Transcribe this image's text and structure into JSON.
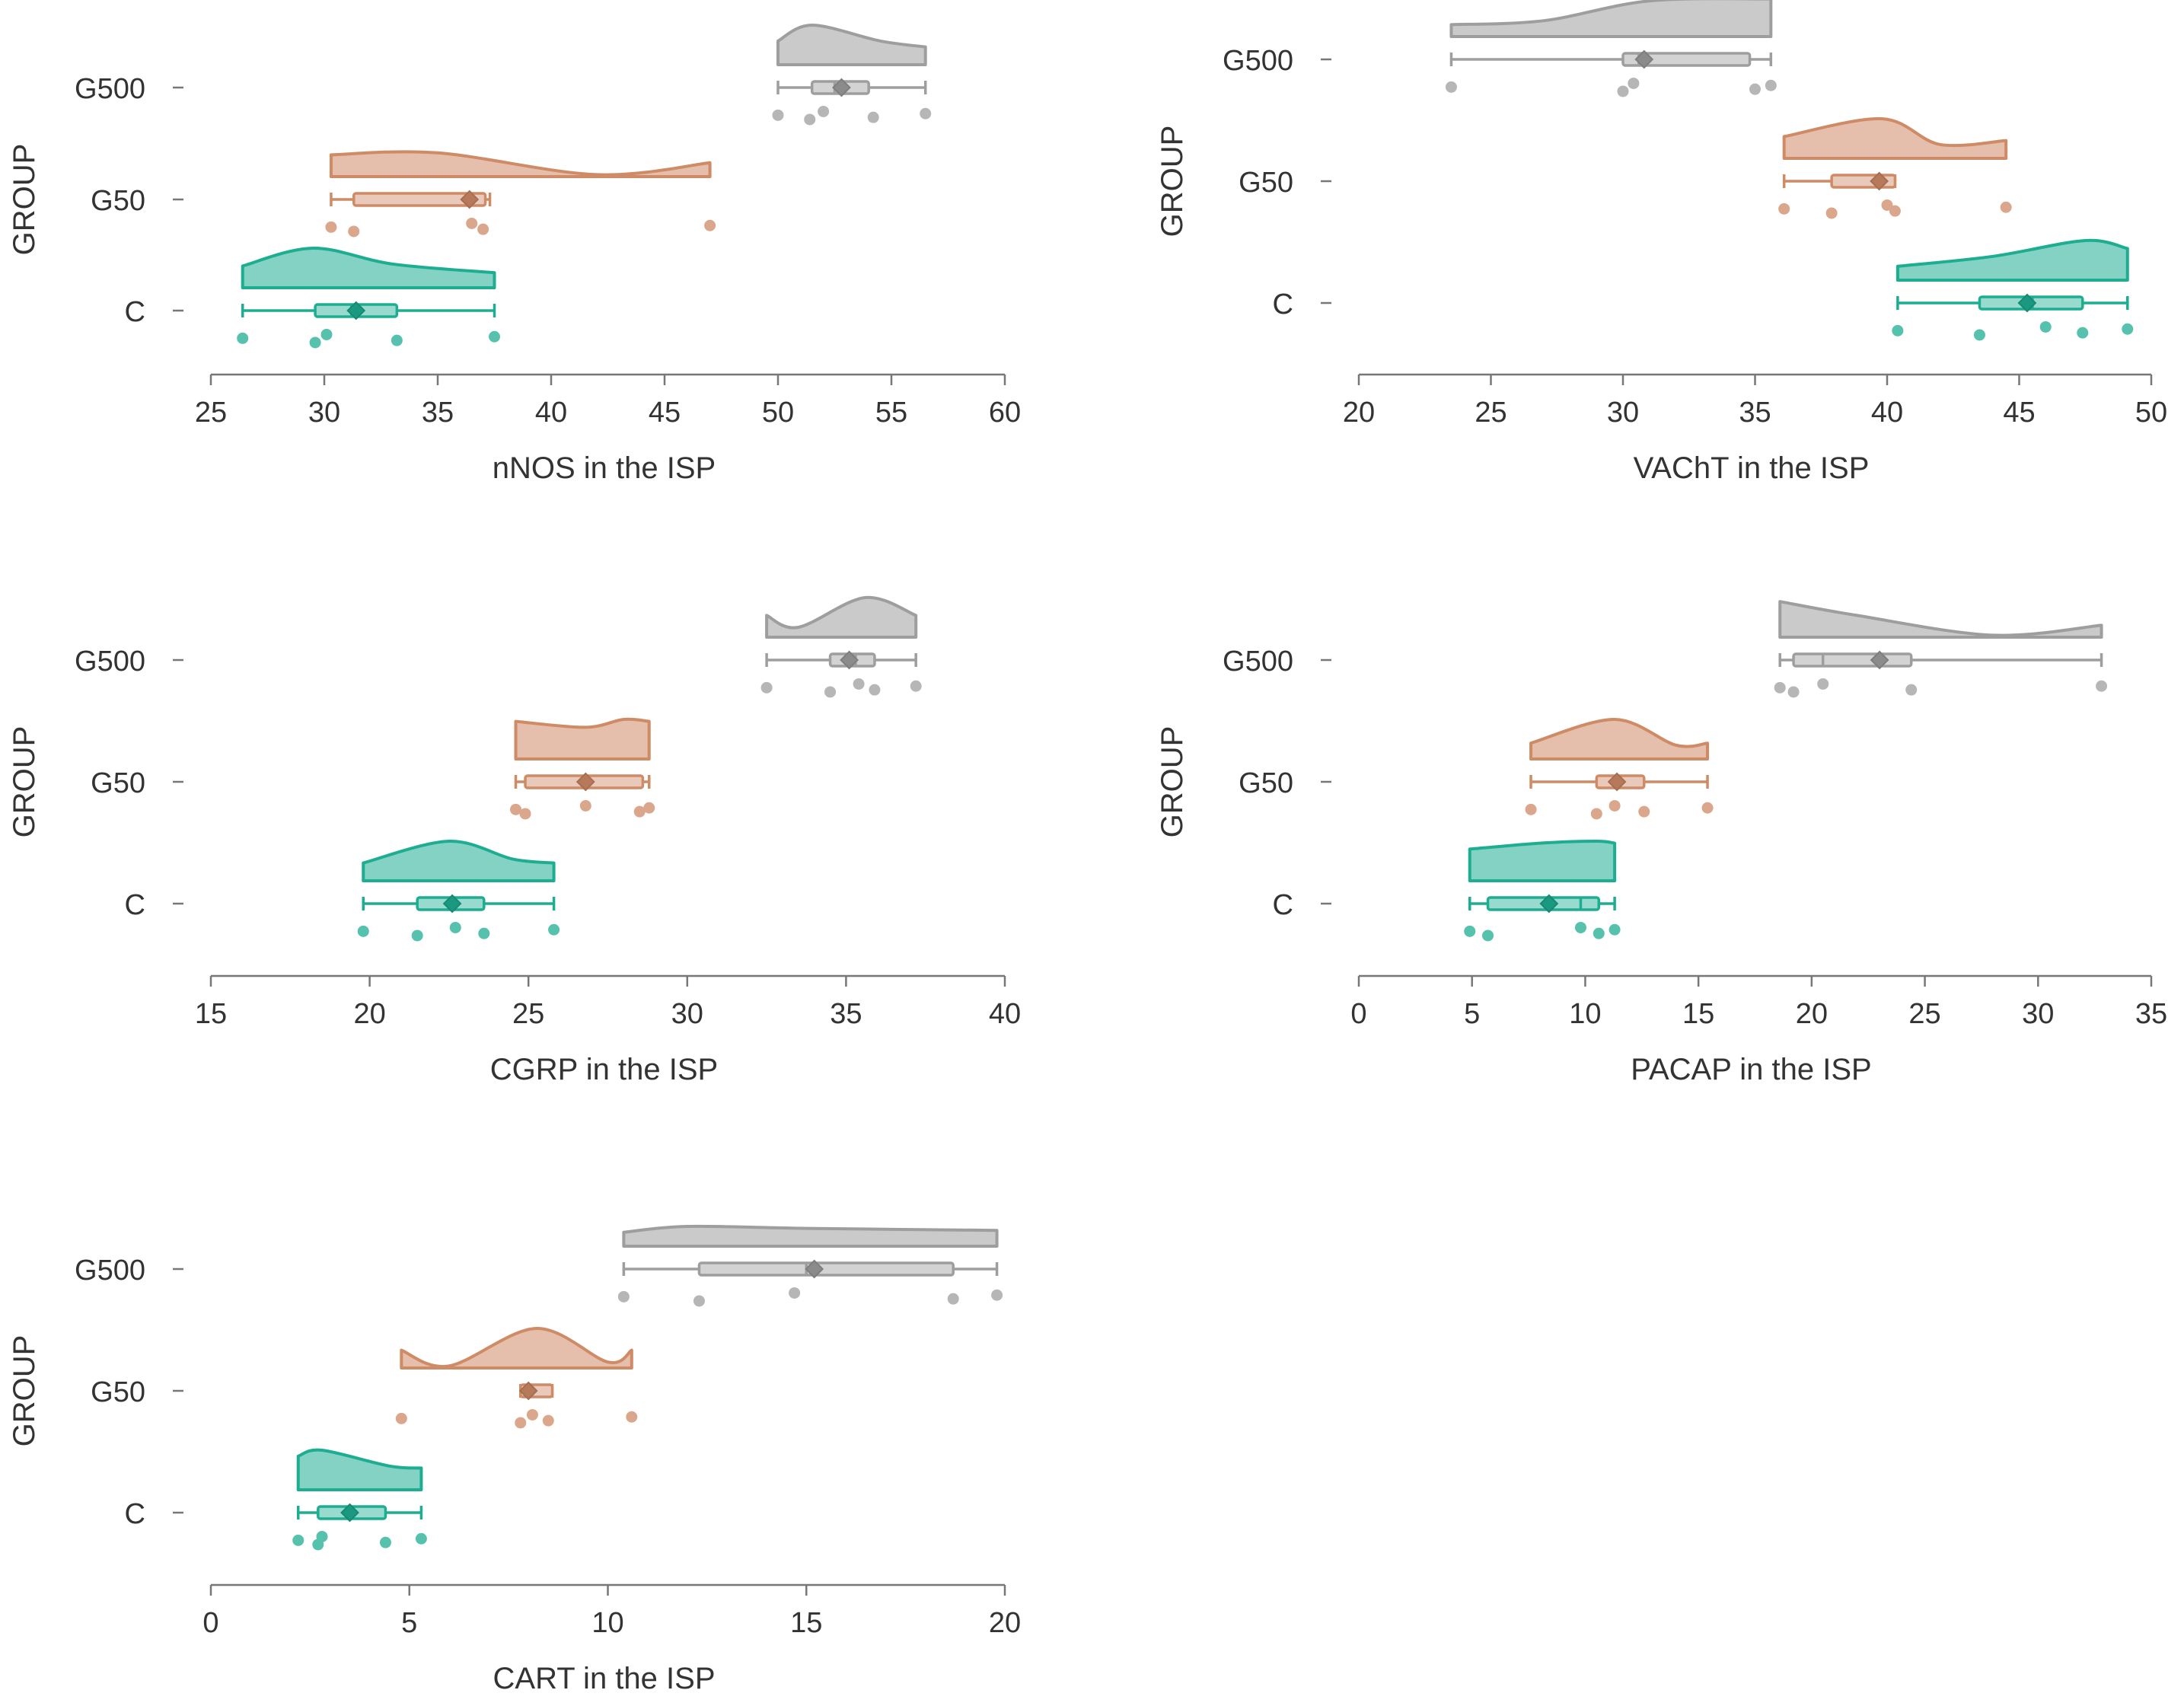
{
  "chart_data": [
    {
      "type": "raincloud",
      "title": "",
      "xlabel": "nNOS in the ISP",
      "ylabel": "GROUP",
      "xlim": [
        25,
        60
      ],
      "xticks": [
        25,
        30,
        35,
        40,
        45,
        50,
        55,
        60
      ],
      "categories": [
        "C",
        "G50",
        "G500"
      ],
      "series": [
        {
          "group": "C",
          "color": "#1dad91",
          "points": [
            26.4,
            29.6,
            30.1,
            33.2,
            37.5
          ],
          "box": {
            "min": 26.4,
            "q1": 29.6,
            "median": 31.2,
            "q3": 33.2,
            "max": 37.5,
            "mean": 31.4
          },
          "density": [
            [
              26.4,
              0.55
            ],
            [
              29.5,
              1.0
            ],
            [
              33.0,
              0.6
            ],
            [
              37.5,
              0.38
            ]
          ]
        },
        {
          "group": "G50",
          "color": "#cf8a66",
          "points": [
            30.3,
            31.3,
            36.5,
            37.0,
            47.0
          ],
          "box": {
            "min": 30.3,
            "q1": 31.3,
            "median": 36.4,
            "q3": 37.1,
            "max": 37.3,
            "mean": 36.4
          },
          "density": [
            [
              30.3,
              0.55
            ],
            [
              35.0,
              0.6
            ],
            [
              42.0,
              0.05
            ],
            [
              47.0,
              0.35
            ]
          ]
        },
        {
          "group": "G500",
          "color": "#9e9e9e",
          "points": [
            50.0,
            51.4,
            52.0,
            54.2,
            56.5
          ],
          "box": {
            "min": 50.0,
            "q1": 51.5,
            "median": 52.5,
            "q3": 54.0,
            "max": 56.5,
            "mean": 52.8
          },
          "density": [
            [
              50.0,
              0.6
            ],
            [
              51.5,
              1.0
            ],
            [
              54.5,
              0.6
            ],
            [
              56.5,
              0.45
            ]
          ]
        }
      ]
    },
    {
      "type": "raincloud",
      "title": "",
      "xlabel": "VAChT in the ISP",
      "ylabel": "GROUP",
      "xlim": [
        20,
        50
      ],
      "xticks": [
        20,
        25,
        30,
        35,
        40,
        45,
        50
      ],
      "categories": [
        "C",
        "G50",
        "G500"
      ],
      "series": [
        {
          "group": "C",
          "color": "#1dad91",
          "points": [
            40.4,
            43.5,
            46.0,
            47.4,
            49.1
          ],
          "box": {
            "min": 40.4,
            "q1": 43.5,
            "median": 45.5,
            "q3": 47.4,
            "max": 49.1,
            "mean": 45.3
          },
          "density": [
            [
              40.4,
              0.35
            ],
            [
              44.0,
              0.6
            ],
            [
              47.5,
              1.0
            ],
            [
              49.1,
              0.8
            ]
          ]
        },
        {
          "group": "G50",
          "color": "#cf8a66",
          "points": [
            36.1,
            37.9,
            40.0,
            40.3,
            44.5
          ],
          "box": {
            "min": 36.1,
            "q1": 37.9,
            "median": 39.7,
            "q3": 40.3,
            "max": 40.3,
            "mean": 39.7
          },
          "density": [
            [
              36.1,
              0.55
            ],
            [
              39.8,
              1.0
            ],
            [
              42.0,
              0.35
            ],
            [
              44.5,
              0.45
            ]
          ]
        },
        {
          "group": "G500",
          "color": "#9e9e9e",
          "points": [
            23.5,
            30.0,
            30.4,
            35.0,
            35.6
          ],
          "box": {
            "min": 23.5,
            "q1": 30.0,
            "median": 30.6,
            "q3": 34.8,
            "max": 35.6,
            "mean": 30.8
          },
          "density": [
            [
              23.5,
              0.3
            ],
            [
              27.0,
              0.4
            ],
            [
              31.0,
              0.9
            ],
            [
              35.6,
              0.95
            ]
          ]
        }
      ]
    },
    {
      "type": "raincloud",
      "title": "",
      "xlabel": "CGRP in the ISP",
      "ylabel": "GROUP",
      "xlim": [
        15,
        40
      ],
      "xticks": [
        15,
        20,
        25,
        30,
        35,
        40
      ],
      "categories": [
        "C",
        "G50",
        "G500"
      ],
      "series": [
        {
          "group": "C",
          "color": "#1dad91",
          "points": [
            19.8,
            21.5,
            22.7,
            23.6,
            25.8
          ],
          "box": {
            "min": 19.8,
            "q1": 21.5,
            "median": 22.7,
            "q3": 23.6,
            "max": 25.8,
            "mean": 22.6
          },
          "density": [
            [
              19.8,
              0.45
            ],
            [
              22.5,
              1.0
            ],
            [
              24.5,
              0.55
            ],
            [
              25.8,
              0.45
            ]
          ]
        },
        {
          "group": "G50",
          "color": "#cf8a66",
          "points": [
            24.6,
            24.9,
            26.8,
            28.5,
            28.8
          ],
          "box": {
            "min": 24.6,
            "q1": 24.9,
            "median": 26.8,
            "q3": 28.6,
            "max": 28.8,
            "mean": 26.8
          },
          "density": [
            [
              24.6,
              0.95
            ],
            [
              26.8,
              0.8
            ],
            [
              28.0,
              1.0
            ],
            [
              28.8,
              0.95
            ]
          ]
        },
        {
          "group": "G500",
          "color": "#9e9e9e",
          "points": [
            32.5,
            34.5,
            35.4,
            35.9,
            37.2
          ],
          "box": {
            "min": 32.5,
            "q1": 34.5,
            "median": 35.3,
            "q3": 35.9,
            "max": 37.2,
            "mean": 35.1
          },
          "density": [
            [
              32.5,
              0.55
            ],
            [
              33.5,
              0.25
            ],
            [
              35.6,
              1.0
            ],
            [
              37.2,
              0.55
            ]
          ]
        }
      ]
    },
    {
      "type": "raincloud",
      "title": "",
      "xlabel": "PACAP in the ISP",
      "ylabel": "GROUP",
      "xlim": [
        0,
        35
      ],
      "xticks": [
        0,
        5,
        10,
        15,
        20,
        25,
        30,
        35
      ],
      "categories": [
        "C",
        "G50",
        "G500"
      ],
      "series": [
        {
          "group": "C",
          "color": "#1dad91",
          "points": [
            4.9,
            5.7,
            9.8,
            10.6,
            11.3
          ],
          "box": {
            "min": 4.9,
            "q1": 5.7,
            "median": 9.8,
            "q3": 10.6,
            "max": 11.3,
            "mean": 8.4
          },
          "density": [
            [
              4.9,
              0.8
            ],
            [
              8.0,
              0.95
            ],
            [
              10.5,
              1.0
            ],
            [
              11.3,
              0.95
            ]
          ]
        },
        {
          "group": "G50",
          "color": "#cf8a66",
          "points": [
            7.6,
            10.5,
            11.3,
            12.6,
            15.4
          ],
          "box": {
            "min": 7.6,
            "q1": 10.5,
            "median": 11.3,
            "q3": 12.6,
            "max": 15.4,
            "mean": 11.4
          },
          "density": [
            [
              7.6,
              0.4
            ],
            [
              11.3,
              1.0
            ],
            [
              14.0,
              0.35
            ],
            [
              15.4,
              0.4
            ]
          ]
        },
        {
          "group": "G500",
          "color": "#9e9e9e",
          "points": [
            18.6,
            19.2,
            20.5,
            24.4,
            32.8
          ],
          "box": {
            "min": 18.6,
            "q1": 19.2,
            "median": 20.5,
            "q3": 24.4,
            "max": 32.8,
            "mean": 23.0
          },
          "density": [
            [
              18.6,
              0.9
            ],
            [
              22.0,
              0.55
            ],
            [
              28.0,
              0.05
            ],
            [
              32.8,
              0.3
            ]
          ]
        }
      ]
    },
    {
      "type": "raincloud",
      "title": "",
      "xlabel": "CART in the ISP",
      "ylabel": "GROUP",
      "xlim": [
        0,
        20
      ],
      "xticks": [
        0,
        5,
        10,
        15,
        20
      ],
      "categories": [
        "C",
        "G50",
        "G500"
      ],
      "series": [
        {
          "group": "C",
          "color": "#1dad91",
          "points": [
            2.2,
            2.7,
            2.8,
            4.4,
            5.3
          ],
          "box": {
            "min": 2.2,
            "q1": 2.7,
            "median": 3.5,
            "q3": 4.4,
            "max": 5.3,
            "mean": 3.5
          },
          "density": [
            [
              2.2,
              0.85
            ],
            [
              2.8,
              1.0
            ],
            [
              4.5,
              0.6
            ],
            [
              5.3,
              0.55
            ]
          ]
        },
        {
          "group": "G50",
          "color": "#cf8a66",
          "points": [
            4.8,
            7.8,
            8.1,
            8.5,
            10.6
          ],
          "box": {
            "min": 7.8,
            "q1": 7.8,
            "median": 8.0,
            "q3": 8.6,
            "max": 8.6,
            "mean": 8.0
          },
          "density": [
            [
              4.8,
              0.45
            ],
            [
              6.0,
              0.05
            ],
            [
              8.2,
              1.0
            ],
            [
              10.0,
              0.15
            ],
            [
              10.6,
              0.45
            ]
          ]
        },
        {
          "group": "G500",
          "color": "#9e9e9e",
          "points": [
            10.4,
            12.3,
            14.7,
            18.7,
            19.8
          ],
          "box": {
            "min": 10.4,
            "q1": 12.3,
            "median": 15.0,
            "q3": 18.7,
            "max": 19.8,
            "mean": 15.2
          },
          "density": [
            [
              10.4,
              0.35
            ],
            [
              12.0,
              0.5
            ],
            [
              15.0,
              0.45
            ],
            [
              19.8,
              0.4
            ]
          ]
        }
      ]
    }
  ]
}
